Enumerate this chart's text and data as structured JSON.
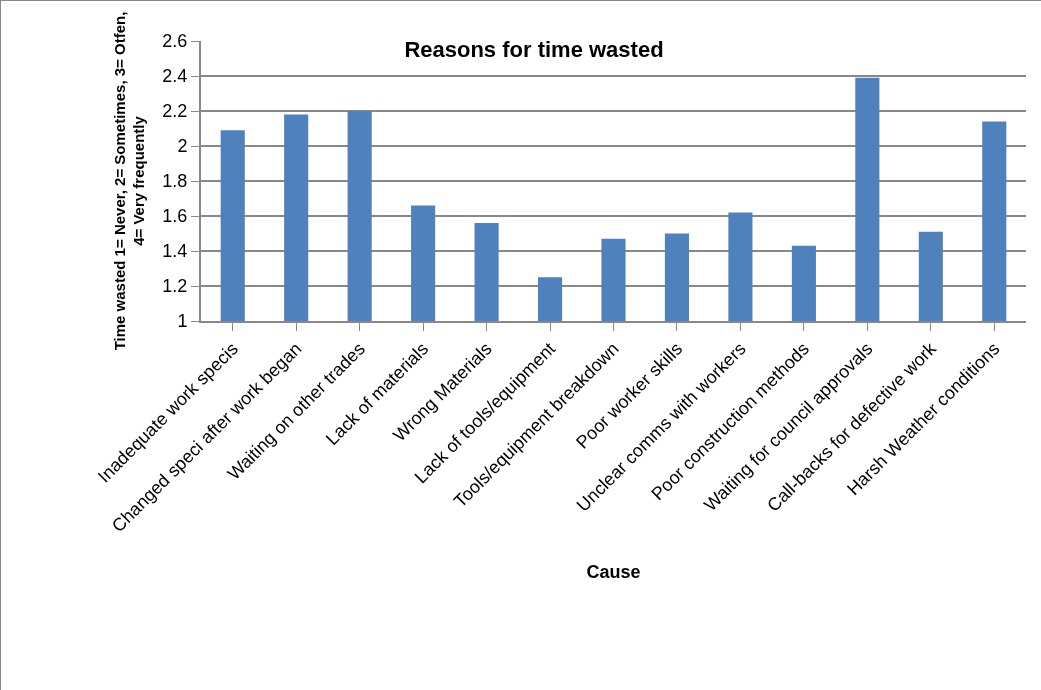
{
  "chart_data": {
    "type": "bar",
    "title": "Reasons for time wasted",
    "xlabel": "Cause",
    "ylabel": "Time wasted 1= Never, 2= Sometimes, 3= Otfen, 4= Very frequently",
    "categories": [
      "Inadequate work specis",
      "Changed speci after work began",
      "Waiting on other trades",
      "Lack of materials",
      "Wrong Materials",
      "Lack of tools/equipment",
      "Tools/equipment breakdown",
      "Poor worker skills",
      "Unclear comms with workers",
      "Poor construction methods",
      "Waiting for council approvals",
      "Call-backs for defective work",
      "Harsh Weather conditions"
    ],
    "values": [
      2.09,
      2.18,
      2.2,
      1.66,
      1.56,
      1.25,
      1.47,
      1.5,
      1.62,
      1.43,
      2.39,
      1.51,
      2.14
    ],
    "color": "#4f81bd",
    "ylim": [
      1,
      2.6
    ],
    "yticks": [
      1,
      1.2,
      1.4,
      1.6,
      1.8,
      2,
      2.2,
      2.4,
      2.6
    ],
    "grid": "y",
    "legend": false
  }
}
